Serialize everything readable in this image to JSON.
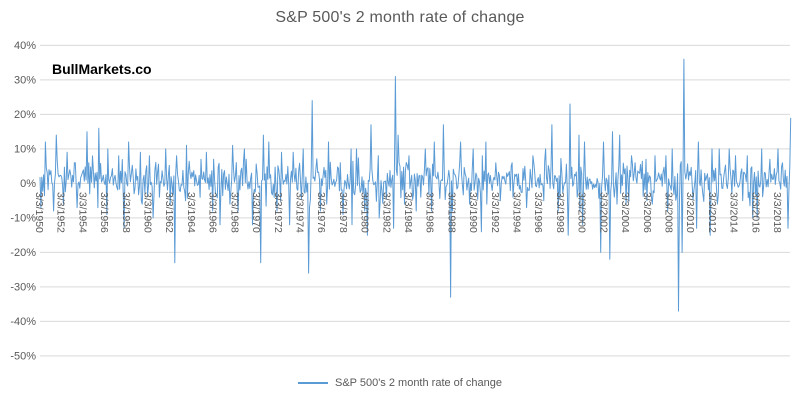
{
  "chart": {
    "title": "S&P 500's 2 month rate of change",
    "watermark": "BullMarkets.co",
    "legend_label": "S&P 500's 2 month rate of change",
    "colors": {
      "line": "#5B9BD5",
      "grid": "#D9D9D9",
      "text": "#595959",
      "watermark": "#000000"
    }
  },
  "chart_data": {
    "type": "line",
    "title": "S&P 500's 2 month rate of change",
    "annotations": [
      "BullMarkets.co"
    ],
    "legend": {
      "position": "bottom",
      "entries": [
        "S&P 500's 2 month rate of change"
      ]
    },
    "grid": "horizontal-only",
    "y_axis": {
      "unit": "%",
      "lim": [
        -50,
        40
      ],
      "values": [
        40,
        30,
        20,
        10,
        0,
        -10,
        -20,
        -30,
        -40,
        -50
      ],
      "ticks": [
        "40%",
        "30%",
        "20%",
        "10%",
        "0%",
        "-10%",
        "-20%",
        "-30%",
        "-40%",
        "-50%"
      ]
    },
    "x_axis": {
      "range_years": [
        1950,
        2019.2
      ],
      "tick_years": [
        1950,
        1952,
        1954,
        1956,
        1958,
        1960,
        1962,
        1964,
        1966,
        1968,
        1970,
        1972,
        1974,
        1976,
        1978,
        1980,
        1982,
        1984,
        1986,
        1988,
        1990,
        1992,
        1994,
        1996,
        1998,
        2000,
        2002,
        2004,
        2006,
        2008,
        2010,
        2012,
        2014,
        2016,
        2018
      ],
      "tick_labels": [
        "3/3/1950",
        "3/3/1952",
        "3/3/1954",
        "3/3/1956",
        "3/3/1958",
        "3/3/1960",
        "3/3/1962",
        "3/3/1964",
        "3/3/1966",
        "3/3/1968",
        "3/3/1970",
        "3/3/1972",
        "3/3/1974",
        "3/3/1976",
        "3/3/1978",
        "3/3/1980",
        "3/3/1982",
        "3/3/1984",
        "3/3/1986",
        "3/3/1988",
        "3/3/1990",
        "3/3/1992",
        "3/3/1994",
        "3/3/1996",
        "3/3/1998",
        "3/3/2000",
        "3/3/2002",
        "3/3/2004",
        "3/3/2006",
        "3/3/2008",
        "3/3/2010",
        "3/3/2012",
        "3/3/2014",
        "3/3/2016",
        "3/3/2018"
      ]
    },
    "series": [
      {
        "name": "S&P 500's 2 month rate of change",
        "color": "#5B9BD5",
        "sampling": "dense jagged series approximated monthly; per-year min/max envelope read from plot (percent)",
        "points_per_year": 12,
        "seed": 19872008,
        "yearly_envelope": [
          [
            1950,
            -7,
            12,
            null,
            null
          ],
          [
            1951,
            -8,
            14,
            null,
            null
          ],
          [
            1952,
            -6,
            9,
            null,
            null
          ],
          [
            1953,
            -7,
            6,
            null,
            null
          ],
          [
            1954,
            -3,
            15,
            null,
            null
          ],
          [
            1955,
            -7,
            16,
            null,
            null
          ],
          [
            1956,
            -9,
            10,
            null,
            null
          ],
          [
            1957,
            -13,
            8,
            9,
            null
          ],
          [
            1958,
            -3,
            12,
            null,
            null
          ],
          [
            1959,
            -6,
            9,
            null,
            null
          ],
          [
            1960,
            -10,
            8,
            null,
            null
          ],
          [
            1961,
            -4,
            10,
            null,
            null
          ],
          [
            1962,
            -23,
            8,
            5,
            null
          ],
          [
            1963,
            -5,
            11,
            null,
            null
          ],
          [
            1964,
            -4,
            7,
            null,
            null
          ],
          [
            1965,
            -8,
            9,
            null,
            null
          ],
          [
            1966,
            -12,
            7,
            7,
            null
          ],
          [
            1967,
            -6,
            11,
            null,
            null
          ],
          [
            1968,
            -8,
            10,
            null,
            null
          ],
          [
            1969,
            -12,
            7,
            null,
            null
          ],
          [
            1970,
            -23,
            14,
            4,
            7
          ],
          [
            1971,
            -8,
            12,
            null,
            null
          ],
          [
            1972,
            -5,
            9,
            null,
            null
          ],
          [
            1973,
            -12,
            9,
            null,
            null
          ],
          [
            1974,
            -26,
            10,
            9,
            null
          ],
          [
            1975,
            -8,
            24,
            null,
            1
          ],
          [
            1976,
            -6,
            12,
            null,
            null
          ],
          [
            1977,
            -9,
            6,
            null,
            null
          ],
          [
            1978,
            -12,
            10,
            null,
            null
          ],
          [
            1979,
            -8,
            10,
            null,
            null
          ],
          [
            1980,
            -15,
            17,
            2,
            6
          ],
          [
            1981,
            -10,
            8,
            null,
            null
          ],
          [
            1982,
            -13,
            31,
            7,
            9
          ],
          [
            1983,
            -6,
            14,
            null,
            0
          ],
          [
            1984,
            -8,
            8,
            null,
            null
          ],
          [
            1985,
            -4,
            10,
            null,
            null
          ],
          [
            1986,
            -8,
            12,
            null,
            null
          ],
          [
            1987,
            -33,
            17,
            10,
            2
          ],
          [
            1988,
            -8,
            12,
            0,
            null
          ],
          [
            1989,
            -6,
            10,
            null,
            null
          ],
          [
            1990,
            -14,
            8,
            8,
            null
          ],
          [
            1991,
            -6,
            12,
            null,
            1
          ],
          [
            1992,
            -5,
            6,
            null,
            null
          ],
          [
            1993,
            -4,
            6,
            null,
            null
          ],
          [
            1994,
            -7,
            5,
            null,
            null
          ],
          [
            1995,
            -2,
            8,
            null,
            null
          ],
          [
            1996,
            -5,
            10,
            null,
            null
          ],
          [
            1997,
            -8,
            17,
            9,
            null
          ],
          [
            1998,
            -15,
            23,
            8,
            10
          ],
          [
            1999,
            -8,
            14,
            null,
            null
          ],
          [
            2000,
            -12,
            12,
            null,
            2
          ],
          [
            2001,
            -20,
            12,
            8,
            11
          ],
          [
            2002,
            -22,
            15,
            6,
            9
          ],
          [
            2003,
            -6,
            14,
            2,
            5
          ],
          [
            2004,
            -6,
            8,
            null,
            null
          ],
          [
            2005,
            -5,
            7,
            null,
            null
          ],
          [
            2006,
            -6,
            8,
            5,
            null
          ],
          [
            2007,
            -8,
            8,
            10,
            null
          ],
          [
            2008,
            -37,
            10,
            10,
            3
          ],
          [
            2009,
            -20,
            36,
            2,
            4
          ],
          [
            2010,
            -13,
            12,
            6,
            null
          ],
          [
            2011,
            -15,
            10,
            9,
            null
          ],
          [
            2012,
            -6,
            10,
            5,
            null
          ],
          [
            2013,
            -3,
            10,
            null,
            null
          ],
          [
            2014,
            -5,
            8,
            9,
            null
          ],
          [
            2015,
            -10,
            8,
            8,
            null
          ],
          [
            2016,
            -10,
            10,
            1,
            6
          ],
          [
            2017,
            -1,
            7,
            null,
            null
          ],
          [
            2018,
            -13,
            10,
            11,
            0
          ],
          [
            2019,
            -2,
            19,
            0,
            2,
            3
          ]
        ],
        "notable_extremes": [
          [
            "mid 1962",
            -23
          ],
          [
            "mid 1970",
            -23
          ],
          [
            "late 1974",
            -26
          ],
          [
            "early 1975",
            24
          ],
          [
            "late 1982",
            31
          ],
          [
            "late 1987",
            -33
          ],
          [
            "late 1998",
            23
          ],
          [
            "late 2001",
            -20
          ],
          [
            "mid 2002",
            -22
          ],
          [
            "late 2008",
            -37
          ],
          [
            "spring 2009",
            36
          ],
          [
            "end 2018",
            -13
          ],
          [
            "early 2019",
            19
          ]
        ]
      }
    ]
  }
}
